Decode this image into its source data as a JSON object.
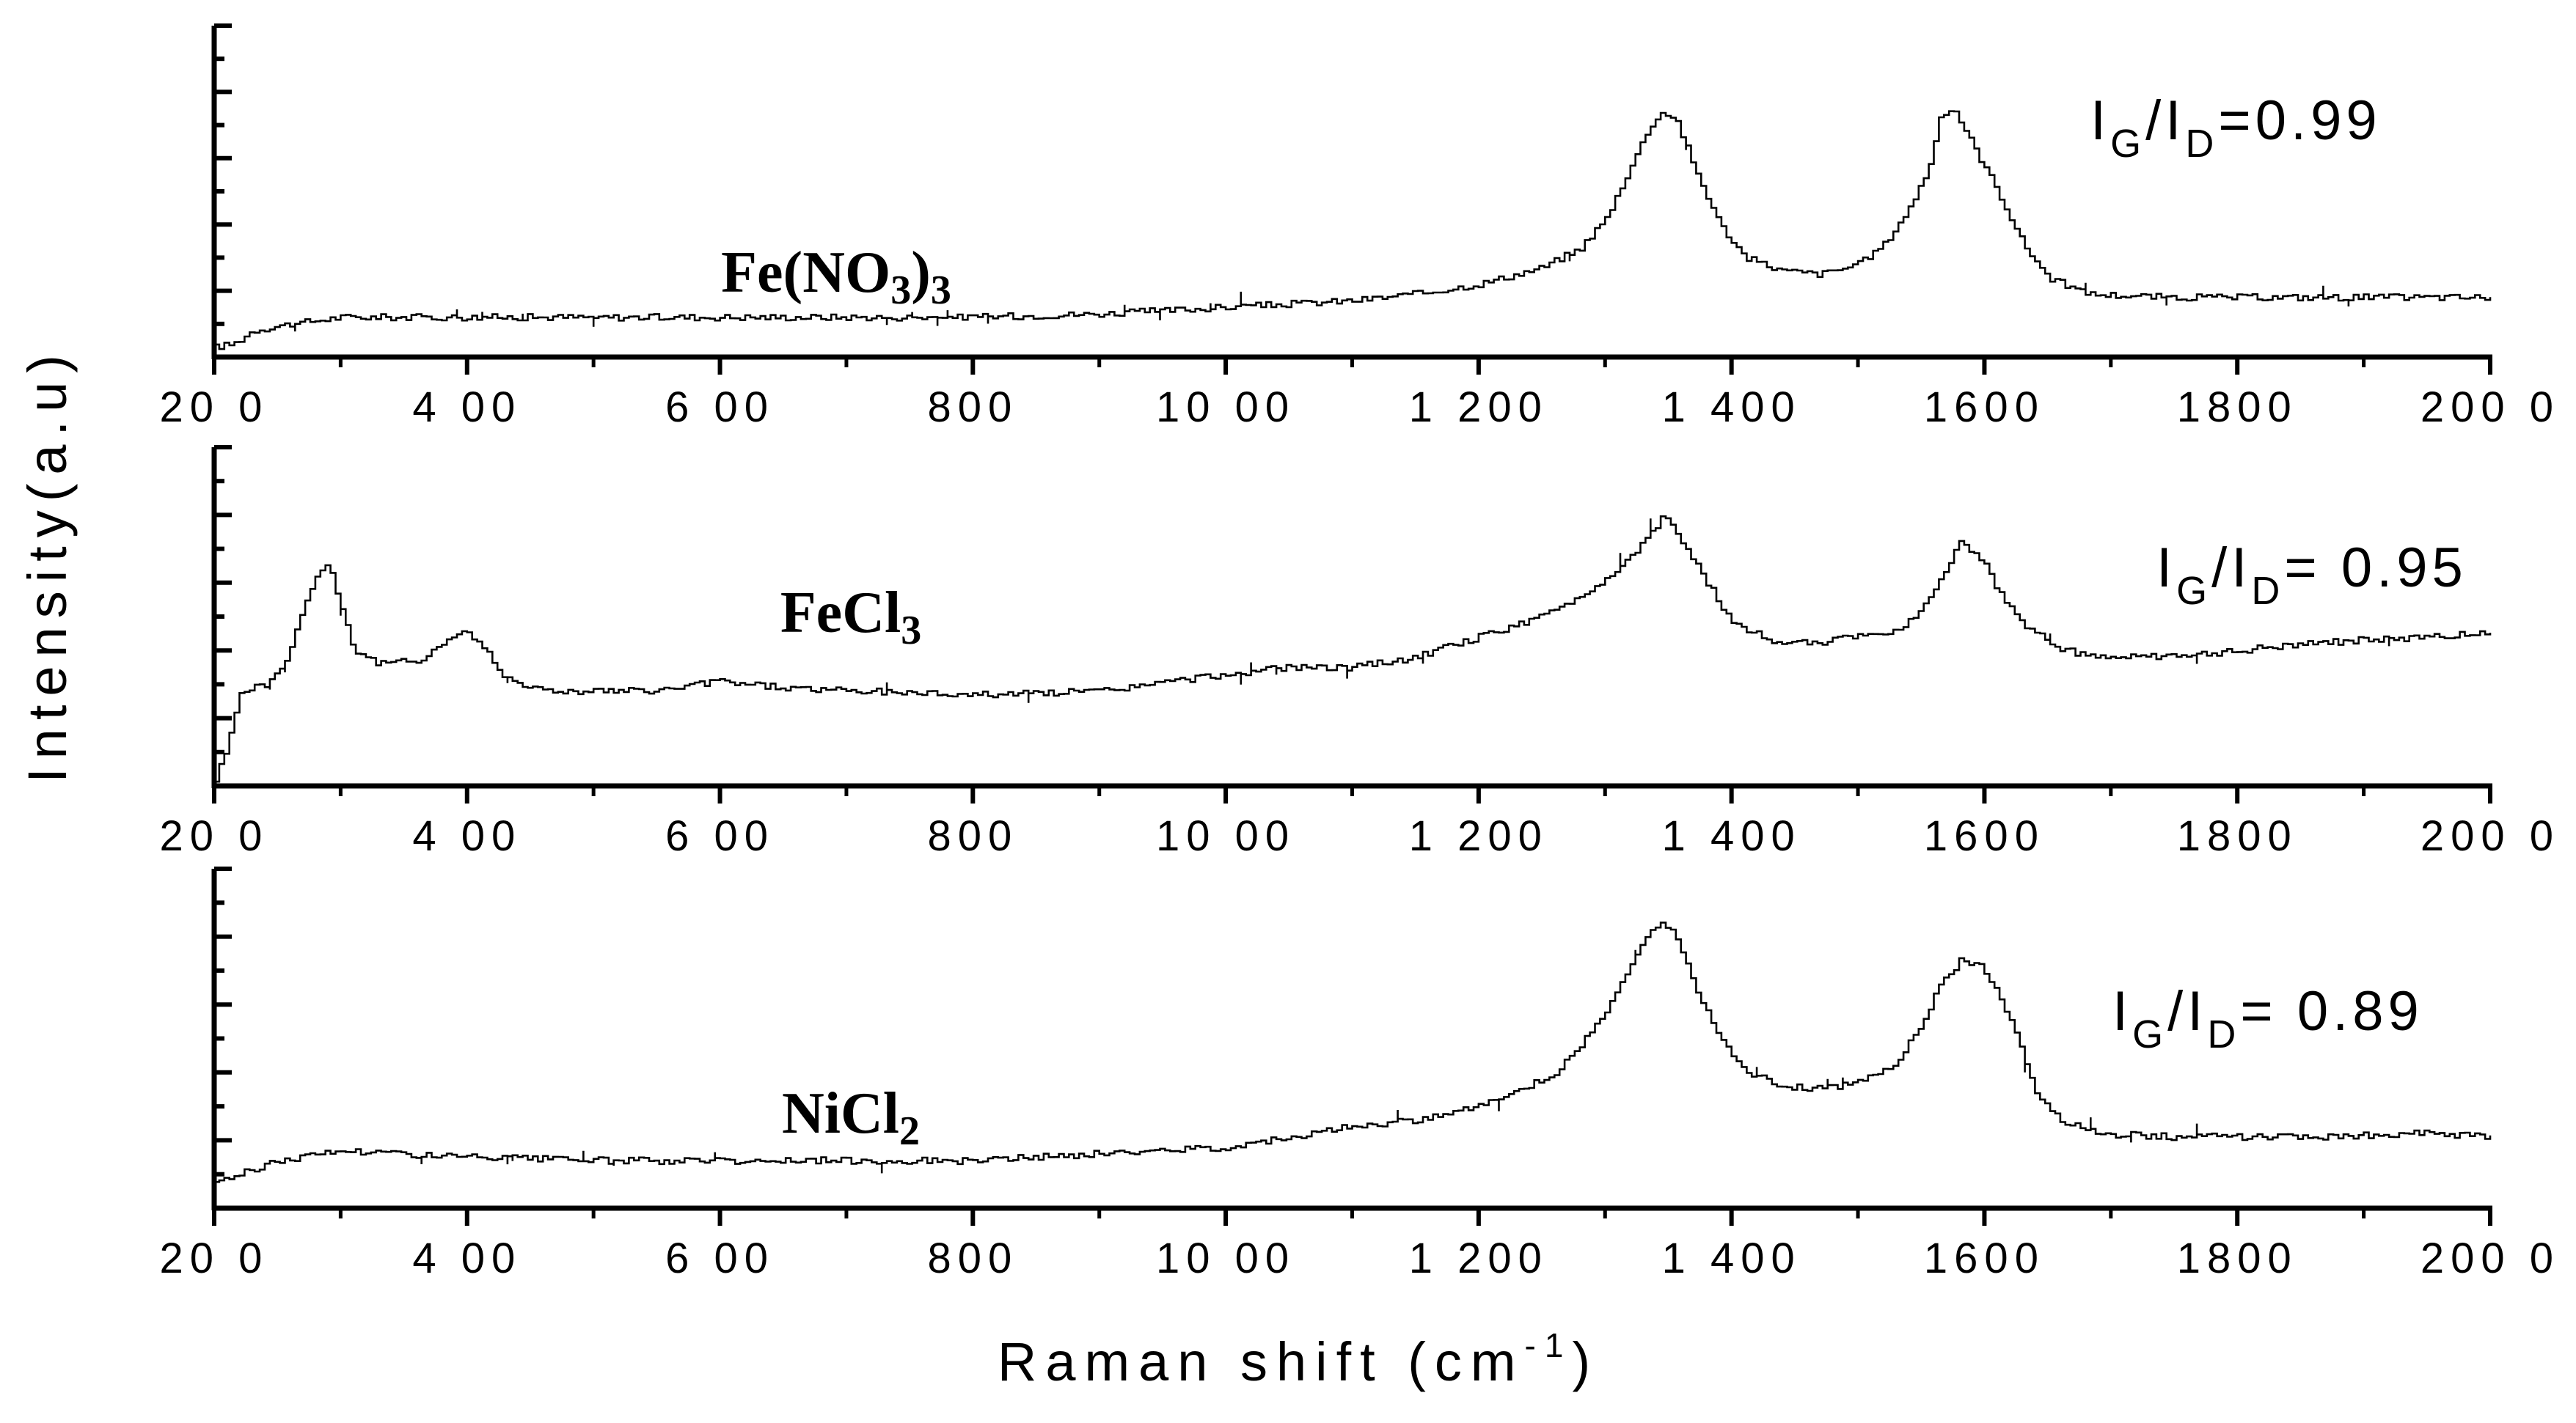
{
  "chart_data": {
    "type": "line",
    "title": "",
    "xlabel": {
      "main": "Raman shift (cm",
      "sup": "-1",
      "close": ")"
    },
    "ylabel": "Intensity(a.u)",
    "xlim": [
      200,
      2000
    ],
    "x_ticks": [
      200,
      400,
      600,
      800,
      1000,
      1200,
      1400,
      1600,
      1800,
      2000
    ],
    "x_tick_labels": [
      "20 0",
      "4 00",
      "6 00",
      "800",
      "10 00",
      "1 200",
      "1 400",
      "1600",
      "1800",
      "200 0"
    ],
    "grid": false,
    "panels": [
      {
        "name": "Fe(NO3)3",
        "label": {
          "main": "Fe(NO",
          "sub1": "3",
          "close": ")",
          "sub2": "3"
        },
        "ratio": {
          "a": "I",
          "sa": "G",
          "slash": "/I",
          "sb": "D",
          "value": "=0.99"
        },
        "ylim": [
          0,
          1
        ],
        "points": [
          [
            200,
            0.03
          ],
          [
            215,
            0.04
          ],
          [
            230,
            0.08
          ],
          [
            260,
            0.1
          ],
          [
            300,
            0.12
          ],
          [
            400,
            0.12
          ],
          [
            500,
            0.12
          ],
          [
            600,
            0.12
          ],
          [
            700,
            0.12
          ],
          [
            800,
            0.12
          ],
          [
            900,
            0.13
          ],
          [
            1000,
            0.15
          ],
          [
            1100,
            0.17
          ],
          [
            1150,
            0.19
          ],
          [
            1200,
            0.22
          ],
          [
            1250,
            0.27
          ],
          [
            1280,
            0.33
          ],
          [
            1300,
            0.42
          ],
          [
            1320,
            0.58
          ],
          [
            1335,
            0.7
          ],
          [
            1345,
            0.74
          ],
          [
            1355,
            0.72
          ],
          [
            1370,
            0.57
          ],
          [
            1390,
            0.4
          ],
          [
            1410,
            0.3
          ],
          [
            1440,
            0.26
          ],
          [
            1470,
            0.25
          ],
          [
            1500,
            0.28
          ],
          [
            1520,
            0.34
          ],
          [
            1540,
            0.45
          ],
          [
            1555,
            0.57
          ],
          [
            1565,
            0.73
          ],
          [
            1575,
            0.75
          ],
          [
            1590,
            0.64
          ],
          [
            1610,
            0.5
          ],
          [
            1630,
            0.34
          ],
          [
            1650,
            0.24
          ],
          [
            1680,
            0.19
          ],
          [
            1750,
            0.18
          ],
          [
            1850,
            0.18
          ],
          [
            1950,
            0.18
          ],
          [
            2000,
            0.18
          ]
        ]
      },
      {
        "name": "FeCl3",
        "label": {
          "main": "FeCl",
          "sub1": "3",
          "close": "",
          "sub2": ""
        },
        "ratio": {
          "a": "I",
          "sa": "G",
          "slash": "/I",
          "sb": "D",
          "value": "= 0.95"
        },
        "ylim": [
          0,
          1
        ],
        "points": [
          [
            200,
            0.02
          ],
          [
            210,
            0.12
          ],
          [
            220,
            0.28
          ],
          [
            240,
            0.3
          ],
          [
            255,
            0.36
          ],
          [
            265,
            0.48
          ],
          [
            280,
            0.62
          ],
          [
            290,
            0.66
          ],
          [
            300,
            0.52
          ],
          [
            310,
            0.4
          ],
          [
            330,
            0.36
          ],
          [
            360,
            0.37
          ],
          [
            380,
            0.42
          ],
          [
            395,
            0.46
          ],
          [
            410,
            0.42
          ],
          [
            430,
            0.32
          ],
          [
            460,
            0.28
          ],
          [
            500,
            0.28
          ],
          [
            550,
            0.28
          ],
          [
            600,
            0.31
          ],
          [
            650,
            0.29
          ],
          [
            700,
            0.28
          ],
          [
            800,
            0.27
          ],
          [
            900,
            0.28
          ],
          [
            1000,
            0.33
          ],
          [
            1050,
            0.35
          ],
          [
            1100,
            0.35
          ],
          [
            1150,
            0.38
          ],
          [
            1200,
            0.44
          ],
          [
            1250,
            0.5
          ],
          [
            1280,
            0.56
          ],
          [
            1300,
            0.61
          ],
          [
            1320,
            0.68
          ],
          [
            1335,
            0.74
          ],
          [
            1345,
            0.8
          ],
          [
            1360,
            0.72
          ],
          [
            1380,
            0.6
          ],
          [
            1400,
            0.48
          ],
          [
            1430,
            0.43
          ],
          [
            1460,
            0.42
          ],
          [
            1500,
            0.44
          ],
          [
            1530,
            0.46
          ],
          [
            1550,
            0.52
          ],
          [
            1565,
            0.62
          ],
          [
            1580,
            0.72
          ],
          [
            1595,
            0.68
          ],
          [
            1610,
            0.58
          ],
          [
            1630,
            0.48
          ],
          [
            1660,
            0.4
          ],
          [
            1700,
            0.38
          ],
          [
            1750,
            0.38
          ],
          [
            1800,
            0.4
          ],
          [
            1850,
            0.42
          ],
          [
            1900,
            0.43
          ],
          [
            1950,
            0.44
          ],
          [
            2000,
            0.45
          ]
        ]
      },
      {
        "name": "NiCl2",
        "label": {
          "main": "NiCl",
          "sub1": "2",
          "close": "",
          "sub2": ""
        },
        "ratio": {
          "a": "I",
          "sa": "G",
          "slash": "/I",
          "sb": "D",
          "value": "= 0.89"
        },
        "ylim": [
          0,
          1
        ],
        "points": [
          [
            200,
            0.08
          ],
          [
            220,
            0.1
          ],
          [
            250,
            0.14
          ],
          [
            300,
            0.17
          ],
          [
            400,
            0.15
          ],
          [
            500,
            0.14
          ],
          [
            600,
            0.14
          ],
          [
            700,
            0.14
          ],
          [
            800,
            0.14
          ],
          [
            900,
            0.16
          ],
          [
            1000,
            0.18
          ],
          [
            1050,
            0.21
          ],
          [
            1100,
            0.24
          ],
          [
            1150,
            0.26
          ],
          [
            1200,
            0.3
          ],
          [
            1230,
            0.34
          ],
          [
            1260,
            0.4
          ],
          [
            1280,
            0.48
          ],
          [
            1300,
            0.58
          ],
          [
            1320,
            0.72
          ],
          [
            1335,
            0.82
          ],
          [
            1345,
            0.84
          ],
          [
            1355,
            0.8
          ],
          [
            1370,
            0.66
          ],
          [
            1390,
            0.5
          ],
          [
            1410,
            0.4
          ],
          [
            1440,
            0.36
          ],
          [
            1470,
            0.35
          ],
          [
            1500,
            0.37
          ],
          [
            1530,
            0.43
          ],
          [
            1550,
            0.55
          ],
          [
            1565,
            0.66
          ],
          [
            1580,
            0.73
          ],
          [
            1595,
            0.72
          ],
          [
            1610,
            0.64
          ],
          [
            1625,
            0.5
          ],
          [
            1640,
            0.34
          ],
          [
            1660,
            0.26
          ],
          [
            1690,
            0.22
          ],
          [
            1750,
            0.21
          ],
          [
            1850,
            0.21
          ],
          [
            1950,
            0.22
          ],
          [
            2000,
            0.21
          ]
        ]
      }
    ]
  }
}
